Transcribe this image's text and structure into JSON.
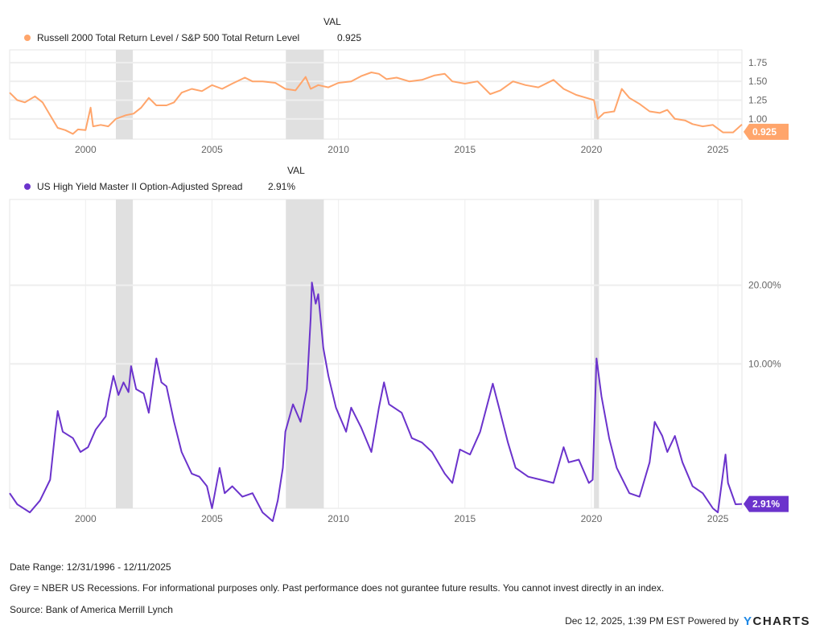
{
  "chart_data": [
    {
      "type": "line",
      "val_header": "VAL",
      "series": [
        {
          "name": "Russell 2000 Total Return Level / S&P 500 Total Return Level",
          "color": "#FFA56B",
          "current_value": "0.925",
          "points": [
            [
              1997.0,
              1.35
            ],
            [
              1997.3,
              1.25
            ],
            [
              1997.6,
              1.22
            ],
            [
              1998.0,
              1.3
            ],
            [
              1998.3,
              1.22
            ],
            [
              1998.6,
              1.05
            ],
            [
              1998.9,
              0.88
            ],
            [
              1999.2,
              0.85
            ],
            [
              1999.5,
              0.8
            ],
            [
              1999.7,
              0.86
            ],
            [
              2000.0,
              0.85
            ],
            [
              2000.2,
              1.15
            ],
            [
              2000.3,
              0.9
            ],
            [
              2000.6,
              0.92
            ],
            [
              2000.9,
              0.9
            ],
            [
              2001.2,
              1.0
            ],
            [
              2001.6,
              1.05
            ],
            [
              2001.9,
              1.07
            ],
            [
              2002.2,
              1.15
            ],
            [
              2002.5,
              1.28
            ],
            [
              2002.8,
              1.18
            ],
            [
              2003.2,
              1.18
            ],
            [
              2003.5,
              1.22
            ],
            [
              2003.8,
              1.35
            ],
            [
              2004.2,
              1.4
            ],
            [
              2004.6,
              1.37
            ],
            [
              2005.0,
              1.45
            ],
            [
              2005.4,
              1.4
            ],
            [
              2005.8,
              1.47
            ],
            [
              2006.3,
              1.55
            ],
            [
              2006.6,
              1.5
            ],
            [
              2007.0,
              1.5
            ],
            [
              2007.5,
              1.48
            ],
            [
              2007.9,
              1.4
            ],
            [
              2008.3,
              1.38
            ],
            [
              2008.7,
              1.56
            ],
            [
              2008.9,
              1.4
            ],
            [
              2009.2,
              1.45
            ],
            [
              2009.6,
              1.42
            ],
            [
              2010.0,
              1.48
            ],
            [
              2010.5,
              1.5
            ],
            [
              2010.9,
              1.57
            ],
            [
              2011.3,
              1.62
            ],
            [
              2011.6,
              1.6
            ],
            [
              2011.9,
              1.53
            ],
            [
              2012.3,
              1.55
            ],
            [
              2012.8,
              1.5
            ],
            [
              2013.3,
              1.52
            ],
            [
              2013.8,
              1.58
            ],
            [
              2014.2,
              1.6
            ],
            [
              2014.5,
              1.5
            ],
            [
              2015.0,
              1.47
            ],
            [
              2015.5,
              1.5
            ],
            [
              2016.0,
              1.33
            ],
            [
              2016.4,
              1.38
            ],
            [
              2016.9,
              1.5
            ],
            [
              2017.4,
              1.45
            ],
            [
              2017.9,
              1.42
            ],
            [
              2018.5,
              1.52
            ],
            [
              2018.9,
              1.4
            ],
            [
              2019.4,
              1.32
            ],
            [
              2019.9,
              1.27
            ],
            [
              2020.1,
              1.25
            ],
            [
              2020.25,
              1.0
            ],
            [
              2020.5,
              1.08
            ],
            [
              2020.9,
              1.1
            ],
            [
              2021.2,
              1.4
            ],
            [
              2021.5,
              1.28
            ],
            [
              2021.9,
              1.2
            ],
            [
              2022.3,
              1.1
            ],
            [
              2022.7,
              1.08
            ],
            [
              2023.0,
              1.12
            ],
            [
              2023.3,
              1.0
            ],
            [
              2023.7,
              0.98
            ],
            [
              2024.0,
              0.93
            ],
            [
              2024.4,
              0.9
            ],
            [
              2024.8,
              0.92
            ],
            [
              2025.2,
              0.82
            ],
            [
              2025.6,
              0.82
            ],
            [
              2025.95,
              0.925
            ]
          ]
        }
      ],
      "y_ticks": [
        "1.00",
        "1.25",
        "1.50",
        "1.75"
      ],
      "ylim": [
        0.73,
        1.92
      ],
      "y_scale": "linear",
      "x_ticks": [
        "2000",
        "2005",
        "2010",
        "2015",
        "2020",
        "2025"
      ],
      "xlim": [
        1997.0,
        2025.95
      ],
      "grid": true
    },
    {
      "type": "line",
      "val_header": "VAL",
      "series": [
        {
          "name": "US High Yield Master II Option-Adjusted Spread",
          "color": "#6B33CC",
          "current_value": "2.91%",
          "points": [
            [
              1997.0,
              3.2
            ],
            [
              1997.3,
              2.9
            ],
            [
              1997.8,
              2.7
            ],
            [
              1998.2,
              3.0
            ],
            [
              1998.6,
              3.6
            ],
            [
              1998.8,
              5.5
            ],
            [
              1998.9,
              6.6
            ],
            [
              1999.1,
              5.5
            ],
            [
              1999.5,
              5.2
            ],
            [
              1999.8,
              4.6
            ],
            [
              2000.1,
              4.8
            ],
            [
              2000.4,
              5.6
            ],
            [
              2000.8,
              6.3
            ],
            [
              2000.9,
              7.2
            ],
            [
              2001.1,
              9.0
            ],
            [
              2001.3,
              7.6
            ],
            [
              2001.5,
              8.5
            ],
            [
              2001.7,
              7.8
            ],
            [
              2001.8,
              9.8
            ],
            [
              2002.0,
              8.0
            ],
            [
              2002.3,
              7.7
            ],
            [
              2002.5,
              6.5
            ],
            [
              2002.7,
              9.0
            ],
            [
              2002.8,
              10.5
            ],
            [
              2003.0,
              8.5
            ],
            [
              2003.2,
              8.2
            ],
            [
              2003.5,
              6.0
            ],
            [
              2003.8,
              4.6
            ],
            [
              2004.2,
              3.8
            ],
            [
              2004.5,
              3.7
            ],
            [
              2004.8,
              3.4
            ],
            [
              2005.0,
              2.8
            ],
            [
              2005.3,
              4.0
            ],
            [
              2005.5,
              3.2
            ],
            [
              2005.8,
              3.4
            ],
            [
              2006.2,
              3.1
            ],
            [
              2006.6,
              3.2
            ],
            [
              2007.0,
              2.7
            ],
            [
              2007.4,
              2.5
            ],
            [
              2007.6,
              3.0
            ],
            [
              2007.8,
              4.0
            ],
            [
              2007.9,
              5.5
            ],
            [
              2008.2,
              7.0
            ],
            [
              2008.5,
              6.0
            ],
            [
              2008.75,
              8.0
            ],
            [
              2008.9,
              15.0
            ],
            [
              2008.95,
              20.5
            ],
            [
              2009.1,
              17.0
            ],
            [
              2009.2,
              18.5
            ],
            [
              2009.4,
              11.5
            ],
            [
              2009.6,
              9.0
            ],
            [
              2009.9,
              6.8
            ],
            [
              2010.3,
              5.5
            ],
            [
              2010.5,
              6.8
            ],
            [
              2010.9,
              5.7
            ],
            [
              2011.3,
              4.6
            ],
            [
              2011.6,
              6.8
            ],
            [
              2011.8,
              8.5
            ],
            [
              2012.0,
              7.0
            ],
            [
              2012.5,
              6.5
            ],
            [
              2012.9,
              5.2
            ],
            [
              2013.3,
              5.0
            ],
            [
              2013.7,
              4.6
            ],
            [
              2014.2,
              3.8
            ],
            [
              2014.5,
              3.5
            ],
            [
              2014.8,
              4.7
            ],
            [
              2015.2,
              4.5
            ],
            [
              2015.6,
              5.5
            ],
            [
              2016.1,
              8.4
            ],
            [
              2016.4,
              6.5
            ],
            [
              2016.7,
              5.0
            ],
            [
              2017.0,
              4.0
            ],
            [
              2017.5,
              3.7
            ],
            [
              2018.0,
              3.6
            ],
            [
              2018.5,
              3.5
            ],
            [
              2018.9,
              4.8
            ],
            [
              2019.1,
              4.2
            ],
            [
              2019.5,
              4.3
            ],
            [
              2019.9,
              3.5
            ],
            [
              2020.05,
              3.6
            ],
            [
              2020.2,
              10.5
            ],
            [
              2020.4,
              7.5
            ],
            [
              2020.7,
              5.2
            ],
            [
              2021.0,
              4.0
            ],
            [
              2021.5,
              3.2
            ],
            [
              2021.9,
              3.1
            ],
            [
              2022.3,
              4.2
            ],
            [
              2022.5,
              6.0
            ],
            [
              2022.8,
              5.3
            ],
            [
              2023.0,
              4.6
            ],
            [
              2023.3,
              5.3
            ],
            [
              2023.6,
              4.2
            ],
            [
              2024.0,
              3.4
            ],
            [
              2024.4,
              3.2
            ],
            [
              2024.8,
              2.8
            ],
            [
              2025.0,
              2.7
            ],
            [
              2025.3,
              4.5
            ],
            [
              2025.4,
              3.5
            ],
            [
              2025.7,
              2.9
            ],
            [
              2025.95,
              2.91
            ]
          ]
        }
      ],
      "y_ticks": [
        {
          "value": 10,
          "label": "10.00%"
        },
        {
          "value": 20,
          "label": "20.00%"
        }
      ],
      "ylim": [
        2.8,
        42.6
      ],
      "y_scale": "log",
      "x_ticks": [
        "2000",
        "2005",
        "2010",
        "2015",
        "2020",
        "2025"
      ],
      "xlim": [
        1997.0,
        2025.95
      ],
      "grid": true
    }
  ],
  "recessions": [
    [
      2001.2,
      2001.87
    ],
    [
      2007.92,
      2009.42
    ],
    [
      2020.1,
      2020.3
    ]
  ],
  "recession_color": "#E0E0E0",
  "footer": {
    "date_range": "Date Range: 12/31/1996 - 12/11/2025",
    "note": "Grey = NBER US Recessions. For informational purposes only. Past performance does not gurantee future results. You cannot invest directly in an index.",
    "source": "Source: Bank of America Merrill Lynch",
    "timestamp": "Dec 12, 2025, 1:39 PM EST Powered by",
    "brand": "YCHARTS"
  }
}
